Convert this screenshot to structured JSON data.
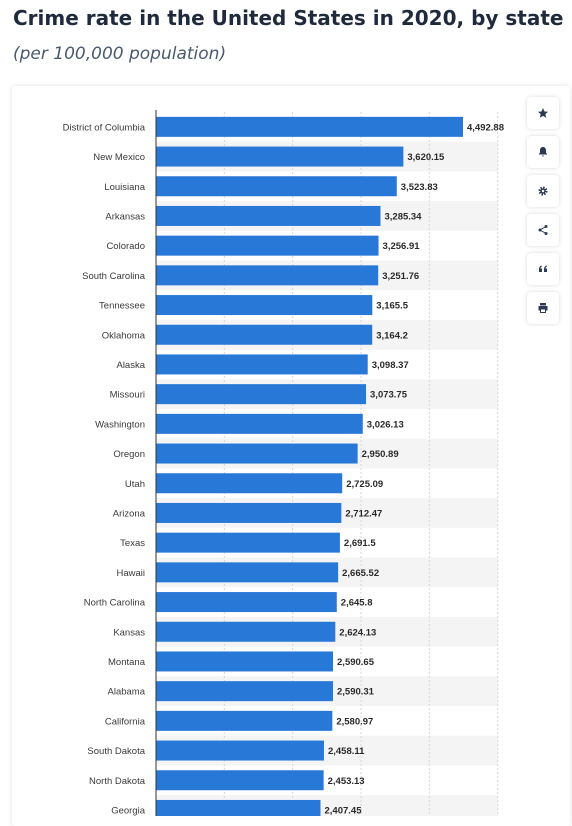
{
  "header": {
    "title": "Crime rate in the United States in 2020, by state",
    "subtitle": "(per 100,000 population)"
  },
  "toolbar": {
    "icons": [
      "star-icon",
      "bell-icon",
      "gear-icon",
      "share-icon",
      "quote-icon",
      "print-icon"
    ]
  },
  "colors": {
    "bar": "#2878d8",
    "band": "#f4f4f5",
    "axis": "#333333"
  },
  "chart_data": {
    "type": "bar",
    "orientation": "horizontal",
    "title": "Crime rate in the United States in 2020, by state",
    "subtitle": "(per 100,000 population)",
    "categories": [
      "District of Columbia",
      "New Mexico",
      "Louisiana",
      "Arkansas",
      "Colorado",
      "South Carolina",
      "Tennessee",
      "Oklahoma",
      "Alaska",
      "Missouri",
      "Washington",
      "Oregon",
      "Utah",
      "Arizona",
      "Texas",
      "Hawaii",
      "North Carolina",
      "Kansas",
      "Montana",
      "Alabama",
      "California",
      "South Dakota",
      "North Dakota",
      "Georgia"
    ],
    "values": [
      4492.88,
      3620.15,
      3523.83,
      3285.34,
      3256.91,
      3251.76,
      3165.5,
      3164.2,
      3098.37,
      3073.75,
      3026.13,
      2950.89,
      2725.09,
      2712.47,
      2691.5,
      2665.52,
      2645.8,
      2624.13,
      2590.65,
      2590.31,
      2580.97,
      2458.11,
      2453.13,
      2407.45
    ],
    "labels": [
      "4,492.88",
      "3,620.15",
      "3,523.83",
      "3,285.34",
      "3,256.91",
      "3,251.76",
      "3,165.5",
      "3,164.2",
      "3,098.37",
      "3,073.75",
      "3,026.13",
      "2,950.89",
      "2,725.09",
      "2,712.47",
      "2,691.5",
      "2,665.52",
      "2,645.8",
      "2,624.13",
      "2,590.65",
      "2,590.31",
      "2,580.97",
      "2,458.11",
      "2,453.13",
      "2,407.45"
    ],
    "xlim": [
      0,
      5000
    ],
    "grid": true
  }
}
